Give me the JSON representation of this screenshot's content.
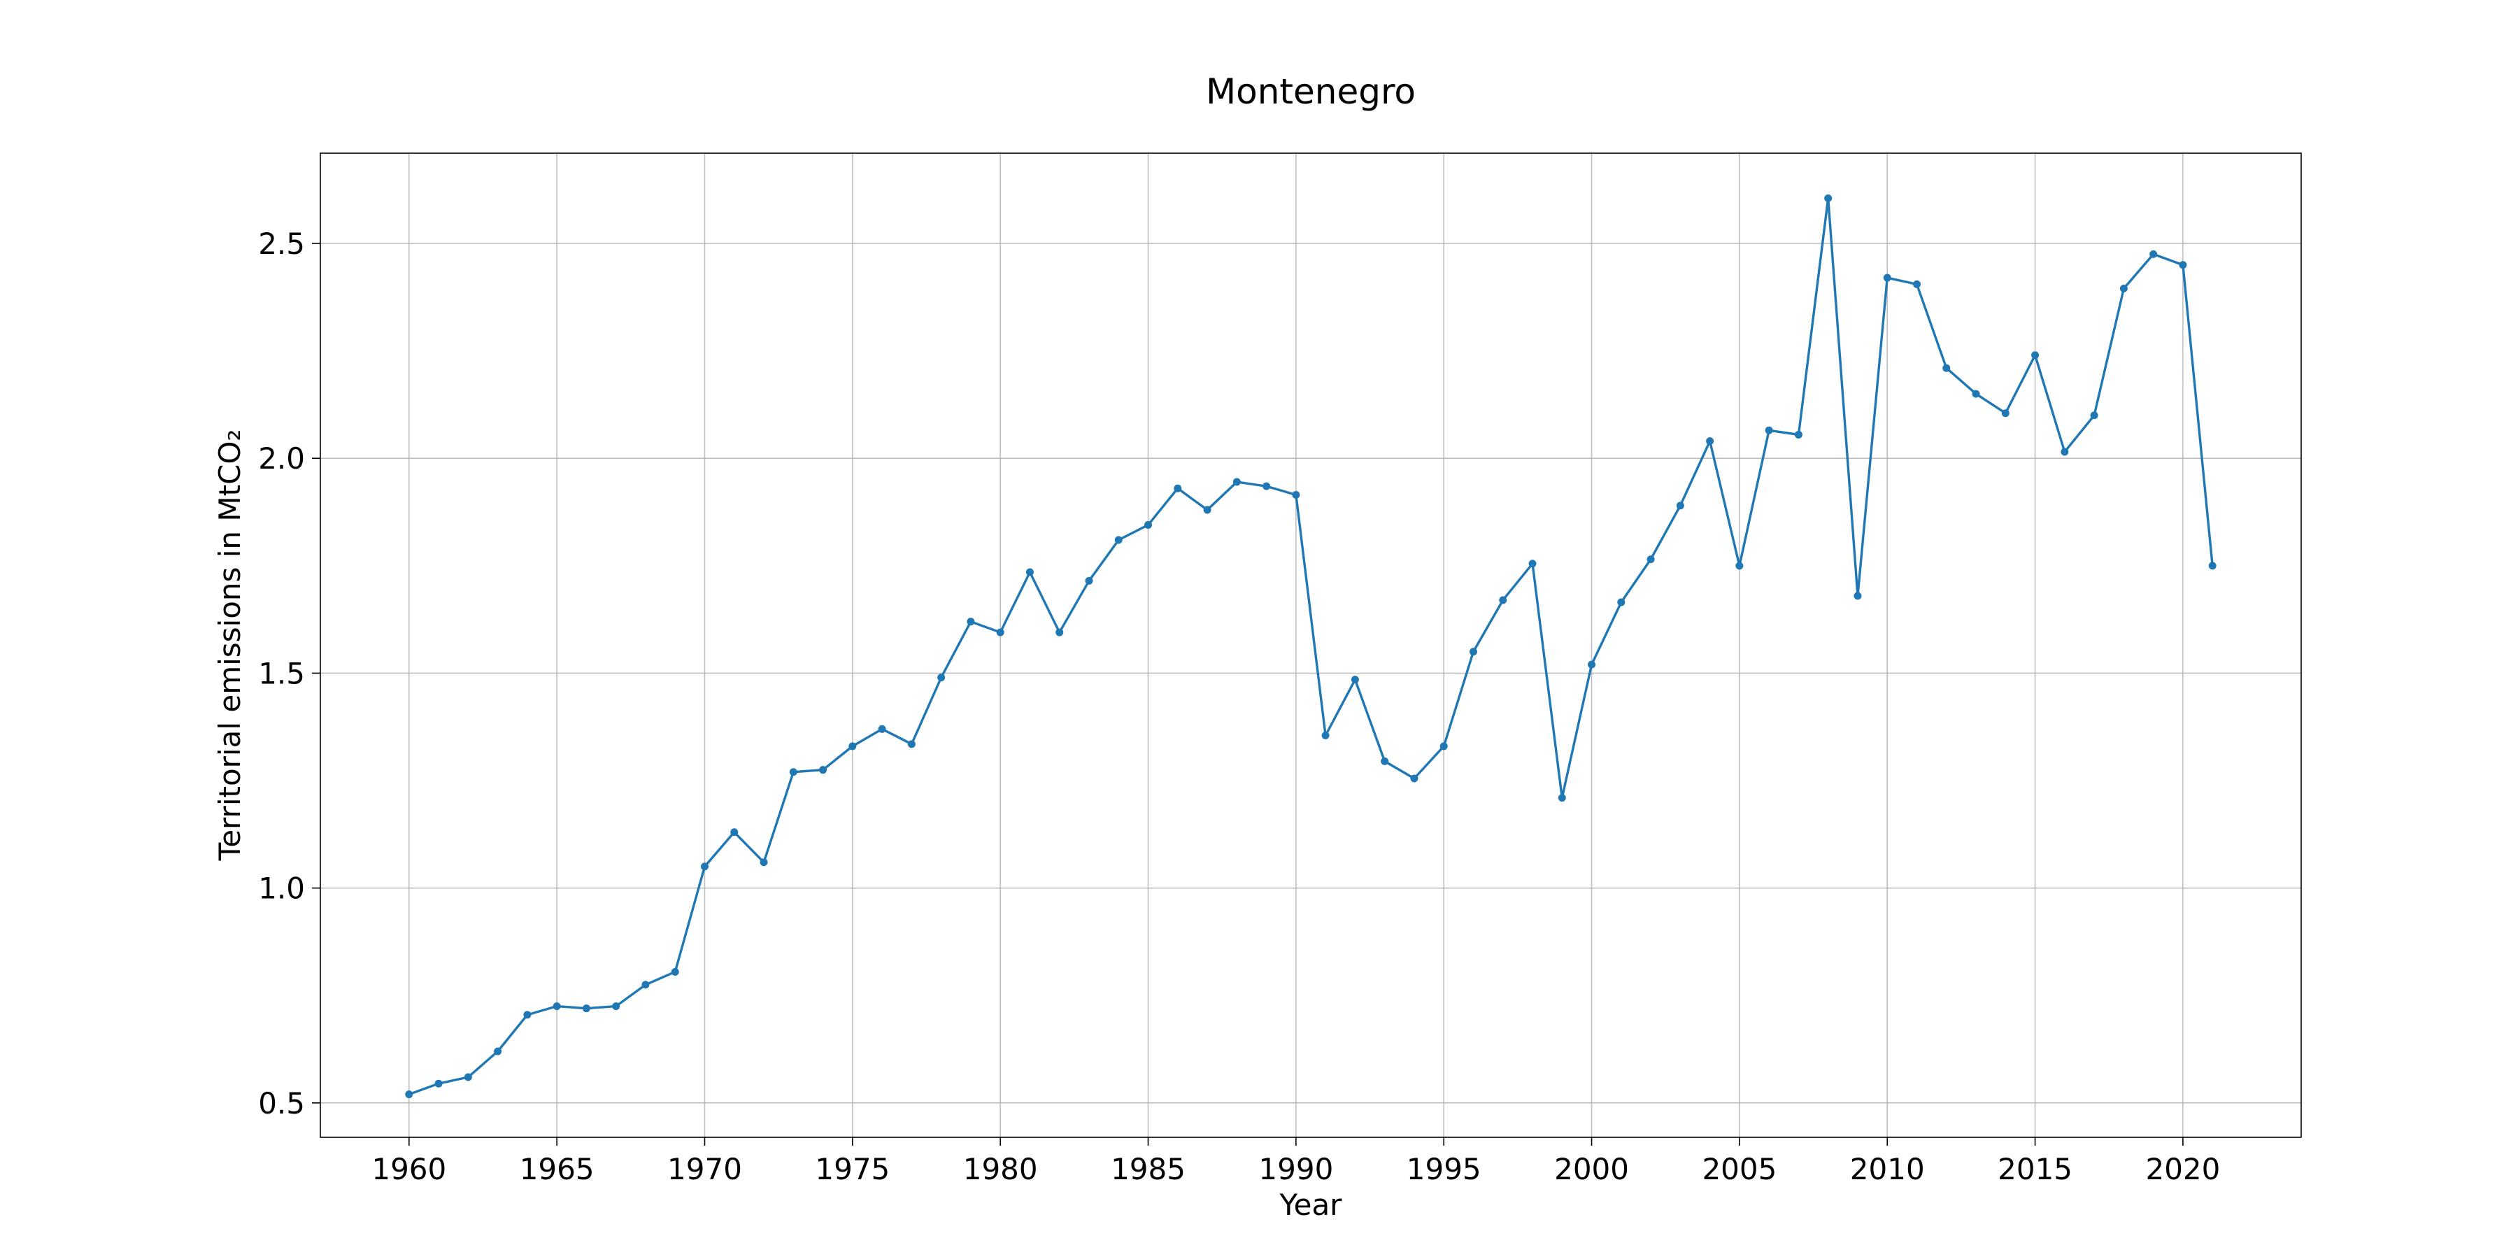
{
  "chart_data": {
    "type": "line",
    "title": "Montenegro",
    "xlabel": "Year",
    "ylabel": "Territorial emissions in MtCO₂",
    "xlim": [
      1957,
      2024
    ],
    "ylim": [
      0.42,
      2.71
    ],
    "xticks": [
      1960,
      1965,
      1970,
      1975,
      1980,
      1985,
      1990,
      1995,
      2000,
      2005,
      2010,
      2015,
      2020
    ],
    "xtick_labels": [
      "1960",
      "1965",
      "1970",
      "1975",
      "1980",
      "1985",
      "1990",
      "1995",
      "2000",
      "2005",
      "2010",
      "2015",
      "2020"
    ],
    "yticks": [
      0.5,
      1.0,
      1.5,
      2.0,
      2.5
    ],
    "ytick_labels": [
      "0.5",
      "1.0",
      "1.5",
      "2.0",
      "2.5"
    ],
    "grid": true,
    "series": [
      {
        "color": "#1f77b4",
        "marker": "circle",
        "x": [
          1960,
          1961,
          1962,
          1963,
          1964,
          1965,
          1966,
          1967,
          1968,
          1969,
          1970,
          1971,
          1972,
          1973,
          1974,
          1975,
          1976,
          1977,
          1978,
          1979,
          1980,
          1981,
          1982,
          1983,
          1984,
          1985,
          1986,
          1987,
          1988,
          1989,
          1990,
          1991,
          1992,
          1993,
          1994,
          1995,
          1996,
          1997,
          1998,
          1999,
          2000,
          2001,
          2002,
          2003,
          2004,
          2005,
          2006,
          2007,
          2008,
          2009,
          2010,
          2011,
          2012,
          2013,
          2014,
          2015,
          2016,
          2017,
          2018,
          2019,
          2020,
          2021
        ],
        "y": [
          0.52,
          0.545,
          0.56,
          0.62,
          0.705,
          0.725,
          0.72,
          0.725,
          0.775,
          0.805,
          1.05,
          1.13,
          1.06,
          1.27,
          1.275,
          1.33,
          1.37,
          1.335,
          1.49,
          1.62,
          1.595,
          1.735,
          1.595,
          1.715,
          1.81,
          1.845,
          1.93,
          1.88,
          1.945,
          1.935,
          1.915,
          1.355,
          1.485,
          1.295,
          1.255,
          1.33,
          1.55,
          1.67,
          1.755,
          1.21,
          1.52,
          1.665,
          1.765,
          1.89,
          2.04,
          1.75,
          2.065,
          2.055,
          2.605,
          1.68,
          2.42,
          2.405,
          2.21,
          2.15,
          2.105,
          2.24,
          2.015,
          2.1,
          2.395,
          2.475,
          2.45,
          1.75
        ]
      }
    ]
  }
}
